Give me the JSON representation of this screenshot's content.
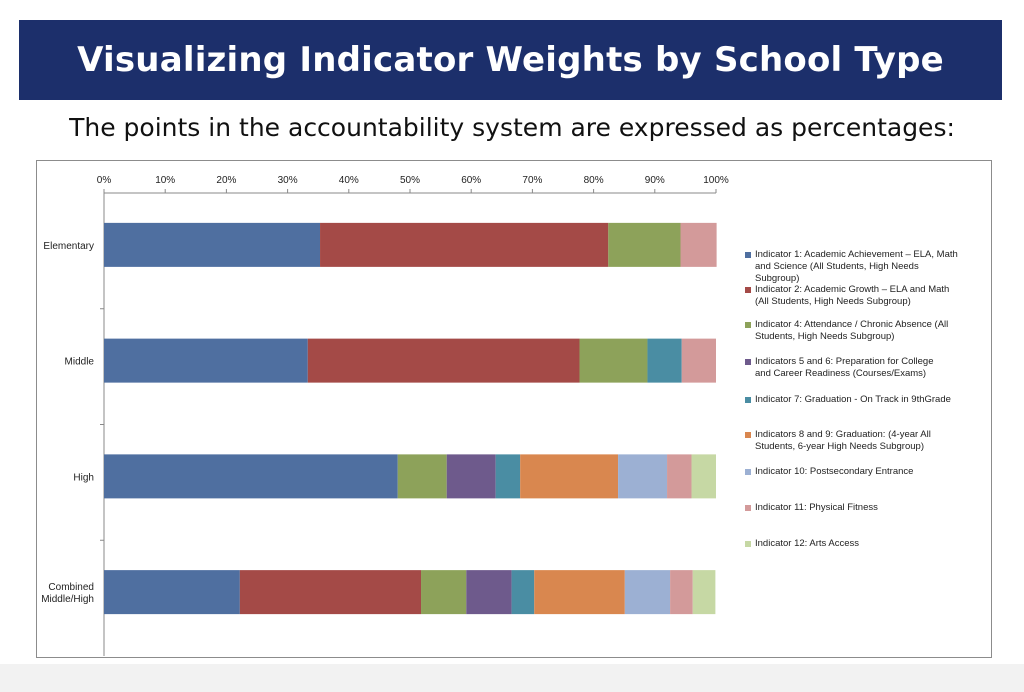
{
  "header": {
    "title": "Visualizing Indicator Weights by School Type",
    "subtitle": "The points in the accountability system are expressed as percentages:"
  },
  "chart_data": {
    "type": "bar",
    "orientation": "horizontal",
    "stacked": true,
    "xlim": [
      0,
      100
    ],
    "x_ticks": [
      "0%",
      "10%",
      "20%",
      "30%",
      "40%",
      "50%",
      "60%",
      "70%",
      "80%",
      "90%",
      "100%"
    ],
    "x_axis_position": "top",
    "legend_position": "right",
    "categories": [
      "Elementary",
      "Middle",
      "High",
      "Combined\nMiddle/High"
    ],
    "series": [
      {
        "name": "Indicator 1: Academic Achievement – ELA, Math and Science (All Students, High Needs Subgroup)",
        "color": "#4f6fa0",
        "values": [
          35.3,
          33.3,
          48,
          22.2
        ]
      },
      {
        "name": "Indicator 2: Academic Growth – ELA and Math (All Students, High Needs Subgroup)",
        "color": "#a44a47",
        "values": [
          47.1,
          44.4,
          0,
          29.6
        ]
      },
      {
        "name": "Indicator 4: Attendance / Chronic Absence (All Students, High Needs Subgroup)",
        "color": "#8da25a",
        "values": [
          11.8,
          11.1,
          8,
          7.4
        ]
      },
      {
        "name": "Indicators 5 and 6: Preparation for College and Career Readiness (Courses/Exams)",
        "color": "#6e5a8c",
        "values": [
          0,
          0,
          8,
          7.4
        ]
      },
      {
        "name": "Indicator 7: Graduation - On Track in 9thGrade",
        "color": "#4a8da3",
        "values": [
          0,
          5.6,
          4,
          3.7
        ]
      },
      {
        "name": "Indicators 8 and 9: Graduation:  (4-year All Students, 6-year High Needs Subgroup)",
        "color": "#d9874f",
        "values": [
          0,
          0,
          16,
          14.8
        ]
      },
      {
        "name": "Indicator 10: Postsecondary Entrance",
        "color": "#9cb0d3",
        "values": [
          0,
          0,
          8,
          7.4
        ]
      },
      {
        "name": "Indicator 11: Physical Fitness",
        "color": "#d39a9a",
        "values": [
          5.9,
          5.6,
          4,
          3.7
        ]
      },
      {
        "name": "Indicator 12: Arts Access",
        "color": "#c6d8a4",
        "values": [
          0,
          0,
          4,
          3.7
        ]
      }
    ],
    "grid": false
  }
}
